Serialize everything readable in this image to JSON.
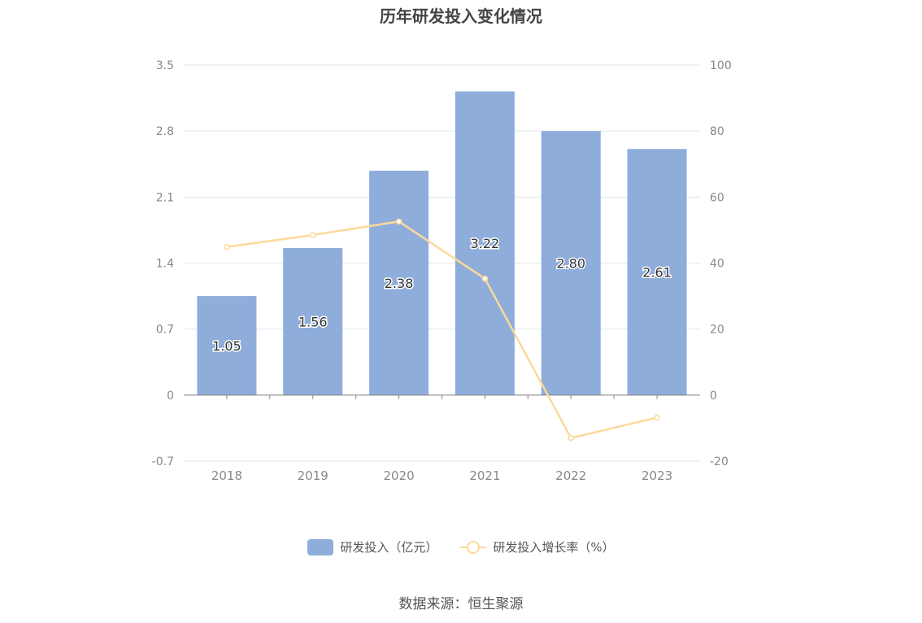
{
  "title": "历年研发投入变化情况",
  "source": "数据来源：恒生聚源",
  "colors": {
    "bar": "#8eaddb",
    "line": "#fcd999",
    "grid": "#e3e6f3",
    "axis": "#888888",
    "tick_text": "#888888"
  },
  "chart_data": {
    "type": "bar",
    "categories": [
      "2018",
      "2019",
      "2020",
      "2021",
      "2022",
      "2023"
    ],
    "series": [
      {
        "name": "研发投入（亿元）",
        "type": "bar",
        "axis": "left",
        "values": [
          1.05,
          1.56,
          2.38,
          3.22,
          2.8,
          2.61
        ],
        "labels": [
          "1.05",
          "1.56",
          "2.38",
          "3.22",
          "2.80",
          "2.61"
        ]
      },
      {
        "name": "研发投入增长率（%）",
        "type": "line",
        "axis": "right",
        "values": [
          44.9,
          48.5,
          52.6,
          35.3,
          -13.0,
          -6.8
        ]
      }
    ],
    "y_left": {
      "min": -0.7,
      "max": 3.5,
      "ticks": [
        "3.5",
        "2.8",
        "2.1",
        "1.4",
        "0.7",
        "0",
        "-0.7"
      ]
    },
    "y_right": {
      "min": -20,
      "max": 100,
      "ticks": [
        "100",
        "80",
        "60",
        "40",
        "20",
        "0",
        "-20"
      ]
    },
    "grid": true,
    "legend_position": "bottom"
  }
}
